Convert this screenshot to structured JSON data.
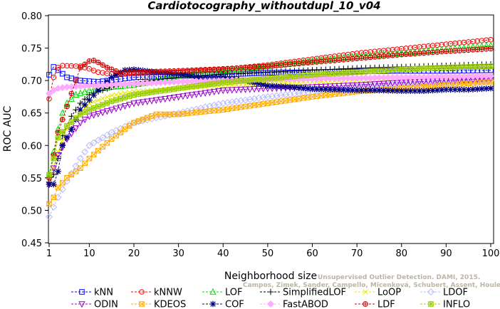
{
  "chart_data": {
    "type": "line",
    "title": "Cardiotocography_withoutdupl_10_v04",
    "xlabel": "Neighborhood size",
    "ylabel": "ROC AUC",
    "xlim": [
      1,
      100
    ],
    "ylim": [
      0.45,
      0.8
    ],
    "xticks": [
      1,
      10,
      20,
      30,
      40,
      50,
      60,
      70,
      80,
      90,
      100
    ],
    "yticks": [
      "0.45",
      "0.50",
      "0.55",
      "0.60",
      "0.65",
      "0.70",
      "0.75",
      "0.80"
    ],
    "grid": false,
    "legend_position": "bottom",
    "watermark": [
      "Campos, Zimek, Sander, Campello, Micenková, Schubert, Assent, Houle",
      "Unsupervised Outlier Detection. DAMI, 2015."
    ],
    "series": [
      {
        "name": "kNN",
        "color": "#0000ff",
        "marker": "square",
        "points": [
          [
            1,
            0.709
          ],
          [
            2,
            0.721
          ],
          [
            3,
            0.716
          ],
          [
            5,
            0.705
          ],
          [
            8,
            0.7
          ],
          [
            12,
            0.698
          ],
          [
            20,
            0.705
          ],
          [
            30,
            0.707
          ],
          [
            40,
            0.709
          ],
          [
            50,
            0.712
          ],
          [
            60,
            0.713
          ],
          [
            70,
            0.714
          ],
          [
            80,
            0.715
          ],
          [
            90,
            0.715
          ],
          [
            100,
            0.716
          ]
        ]
      },
      {
        "name": "kNNW",
        "color": "#ff0000",
        "marker": "circle",
        "points": [
          [
            1,
            0.672
          ],
          [
            2,
            0.705
          ],
          [
            3,
            0.72
          ],
          [
            4,
            0.723
          ],
          [
            8,
            0.722
          ],
          [
            10,
            0.718
          ],
          [
            12,
            0.713
          ],
          [
            15,
            0.71
          ],
          [
            20,
            0.711
          ],
          [
            30,
            0.713
          ],
          [
            40,
            0.717
          ],
          [
            50,
            0.724
          ],
          [
            60,
            0.733
          ],
          [
            70,
            0.742
          ],
          [
            80,
            0.749
          ],
          [
            90,
            0.756
          ],
          [
            100,
            0.763
          ]
        ]
      },
      {
        "name": "LOF",
        "color": "#00dd00",
        "marker": "triangle",
        "points": [
          [
            1,
            0.555
          ],
          [
            2,
            0.59
          ],
          [
            3,
            0.625
          ],
          [
            4,
            0.65
          ],
          [
            5,
            0.665
          ],
          [
            7,
            0.678
          ],
          [
            10,
            0.685
          ],
          [
            15,
            0.69
          ],
          [
            20,
            0.693
          ],
          [
            25,
            0.7
          ],
          [
            30,
            0.707
          ],
          [
            40,
            0.715
          ],
          [
            50,
            0.722
          ],
          [
            60,
            0.73
          ],
          [
            70,
            0.737
          ],
          [
            80,
            0.742
          ],
          [
            90,
            0.748
          ],
          [
            100,
            0.754
          ]
        ]
      },
      {
        "name": "SimplifiedLOF",
        "color": "#000000",
        "marker": "plus",
        "points": [
          [
            1,
            0.54
          ],
          [
            2,
            0.555
          ],
          [
            3,
            0.58
          ],
          [
            4,
            0.615
          ],
          [
            6,
            0.645
          ],
          [
            8,
            0.665
          ],
          [
            10,
            0.678
          ],
          [
            15,
            0.69
          ],
          [
            20,
            0.697
          ],
          [
            30,
            0.705
          ],
          [
            40,
            0.71
          ],
          [
            50,
            0.713
          ],
          [
            60,
            0.716
          ],
          [
            70,
            0.719
          ],
          [
            80,
            0.721
          ],
          [
            90,
            0.723
          ],
          [
            100,
            0.725
          ]
        ]
      },
      {
        "name": "LoOP",
        "color": "#e8e800",
        "marker": "x",
        "points": [
          [
            1,
            0.55
          ],
          [
            2,
            0.565
          ],
          [
            3,
            0.59
          ],
          [
            5,
            0.625
          ],
          [
            8,
            0.65
          ],
          [
            10,
            0.665
          ],
          [
            15,
            0.677
          ],
          [
            20,
            0.683
          ],
          [
            30,
            0.688
          ],
          [
            40,
            0.692
          ],
          [
            50,
            0.695
          ],
          [
            60,
            0.698
          ],
          [
            70,
            0.701
          ],
          [
            80,
            0.703
          ],
          [
            90,
            0.705
          ],
          [
            100,
            0.707
          ]
        ]
      },
      {
        "name": "LDOF",
        "color": "#b8b8ff",
        "marker": "diamond",
        "points": [
          [
            1,
            0.49
          ],
          [
            2,
            0.505
          ],
          [
            3,
            0.52
          ],
          [
            5,
            0.545
          ],
          [
            8,
            0.58
          ],
          [
            10,
            0.6
          ],
          [
            15,
            0.62
          ],
          [
            20,
            0.635
          ],
          [
            30,
            0.65
          ],
          [
            40,
            0.665
          ],
          [
            50,
            0.675
          ],
          [
            60,
            0.683
          ],
          [
            70,
            0.69
          ],
          [
            80,
            0.695
          ],
          [
            90,
            0.698
          ],
          [
            100,
            0.7
          ]
        ]
      },
      {
        "name": "ODIN",
        "color": "#9900cc",
        "marker": "triangle-down",
        "points": [
          [
            1,
            0.54
          ],
          [
            2,
            0.565
          ],
          [
            3,
            0.585
          ],
          [
            5,
            0.61
          ],
          [
            8,
            0.635
          ],
          [
            10,
            0.645
          ],
          [
            15,
            0.655
          ],
          [
            20,
            0.665
          ],
          [
            30,
            0.675
          ],
          [
            40,
            0.685
          ],
          [
            50,
            0.688
          ],
          [
            60,
            0.69
          ],
          [
            70,
            0.693
          ],
          [
            80,
            0.697
          ],
          [
            90,
            0.7
          ],
          [
            100,
            0.703
          ]
        ]
      },
      {
        "name": "KDEOS",
        "color": "#ffaa00",
        "marker": "square-x",
        "points": [
          [
            1,
            0.51
          ],
          [
            2,
            0.52
          ],
          [
            3,
            0.535
          ],
          [
            5,
            0.55
          ],
          [
            8,
            0.565
          ],
          [
            10,
            0.58
          ],
          [
            15,
            0.61
          ],
          [
            20,
            0.635
          ],
          [
            25,
            0.648
          ],
          [
            30,
            0.648
          ],
          [
            40,
            0.655
          ],
          [
            50,
            0.665
          ],
          [
            60,
            0.675
          ],
          [
            70,
            0.683
          ],
          [
            80,
            0.688
          ],
          [
            90,
            0.693
          ],
          [
            100,
            0.698
          ]
        ]
      },
      {
        "name": "COF",
        "color": "#000080",
        "marker": "asterisk",
        "points": [
          [
            1,
            0.54
          ],
          [
            2,
            0.54
          ],
          [
            3,
            0.56
          ],
          [
            4,
            0.6
          ],
          [
            6,
            0.625
          ],
          [
            8,
            0.655
          ],
          [
            10,
            0.67
          ],
          [
            12,
            0.685
          ],
          [
            15,
            0.705
          ],
          [
            18,
            0.716
          ],
          [
            20,
            0.717
          ],
          [
            25,
            0.713
          ],
          [
            30,
            0.71
          ],
          [
            35,
            0.705
          ],
          [
            40,
            0.705
          ],
          [
            45,
            0.7
          ],
          [
            50,
            0.692
          ],
          [
            55,
            0.69
          ],
          [
            60,
            0.687
          ],
          [
            65,
            0.686
          ],
          [
            70,
            0.685
          ],
          [
            75,
            0.685
          ],
          [
            80,
            0.684
          ],
          [
            85,
            0.684
          ],
          [
            90,
            0.686
          ],
          [
            95,
            0.686
          ],
          [
            100,
            0.688
          ]
        ]
      },
      {
        "name": "FastABOD",
        "color": "#ffaaff",
        "marker": "diamond-filled",
        "points": [
          [
            1,
            0.68
          ],
          [
            2,
            0.685
          ],
          [
            3,
            0.688
          ],
          [
            5,
            0.69
          ],
          [
            10,
            0.692
          ],
          [
            20,
            0.695
          ],
          [
            30,
            0.698
          ],
          [
            40,
            0.7
          ],
          [
            50,
            0.702
          ],
          [
            60,
            0.703
          ],
          [
            70,
            0.704
          ],
          [
            80,
            0.705
          ],
          [
            90,
            0.706
          ],
          [
            100,
            0.707
          ]
        ]
      },
      {
        "name": "LDF",
        "color": "#cc0000",
        "marker": "circle-plus",
        "points": [
          [
            1,
            0.55
          ],
          [
            2,
            0.585
          ],
          [
            3,
            0.62
          ],
          [
            5,
            0.66
          ],
          [
            8,
            0.72
          ],
          [
            10,
            0.73
          ],
          [
            11,
            0.731
          ],
          [
            12,
            0.728
          ],
          [
            14,
            0.72
          ],
          [
            17,
            0.712
          ],
          [
            20,
            0.713
          ],
          [
            30,
            0.715
          ],
          [
            40,
            0.718
          ],
          [
            50,
            0.722
          ],
          [
            60,
            0.728
          ],
          [
            70,
            0.734
          ],
          [
            80,
            0.74
          ],
          [
            90,
            0.745
          ],
          [
            100,
            0.749
          ]
        ]
      },
      {
        "name": "INFLO",
        "color": "#99cc00",
        "marker": "star-box",
        "points": [
          [
            1,
            0.555
          ],
          [
            2,
            0.58
          ],
          [
            3,
            0.612
          ],
          [
            5,
            0.63
          ],
          [
            8,
            0.648
          ],
          [
            10,
            0.655
          ],
          [
            15,
            0.668
          ],
          [
            20,
            0.678
          ],
          [
            30,
            0.688
          ],
          [
            40,
            0.697
          ],
          [
            50,
            0.703
          ],
          [
            60,
            0.709
          ],
          [
            70,
            0.713
          ],
          [
            80,
            0.717
          ],
          [
            90,
            0.72
          ],
          [
            100,
            0.722
          ]
        ]
      }
    ]
  }
}
